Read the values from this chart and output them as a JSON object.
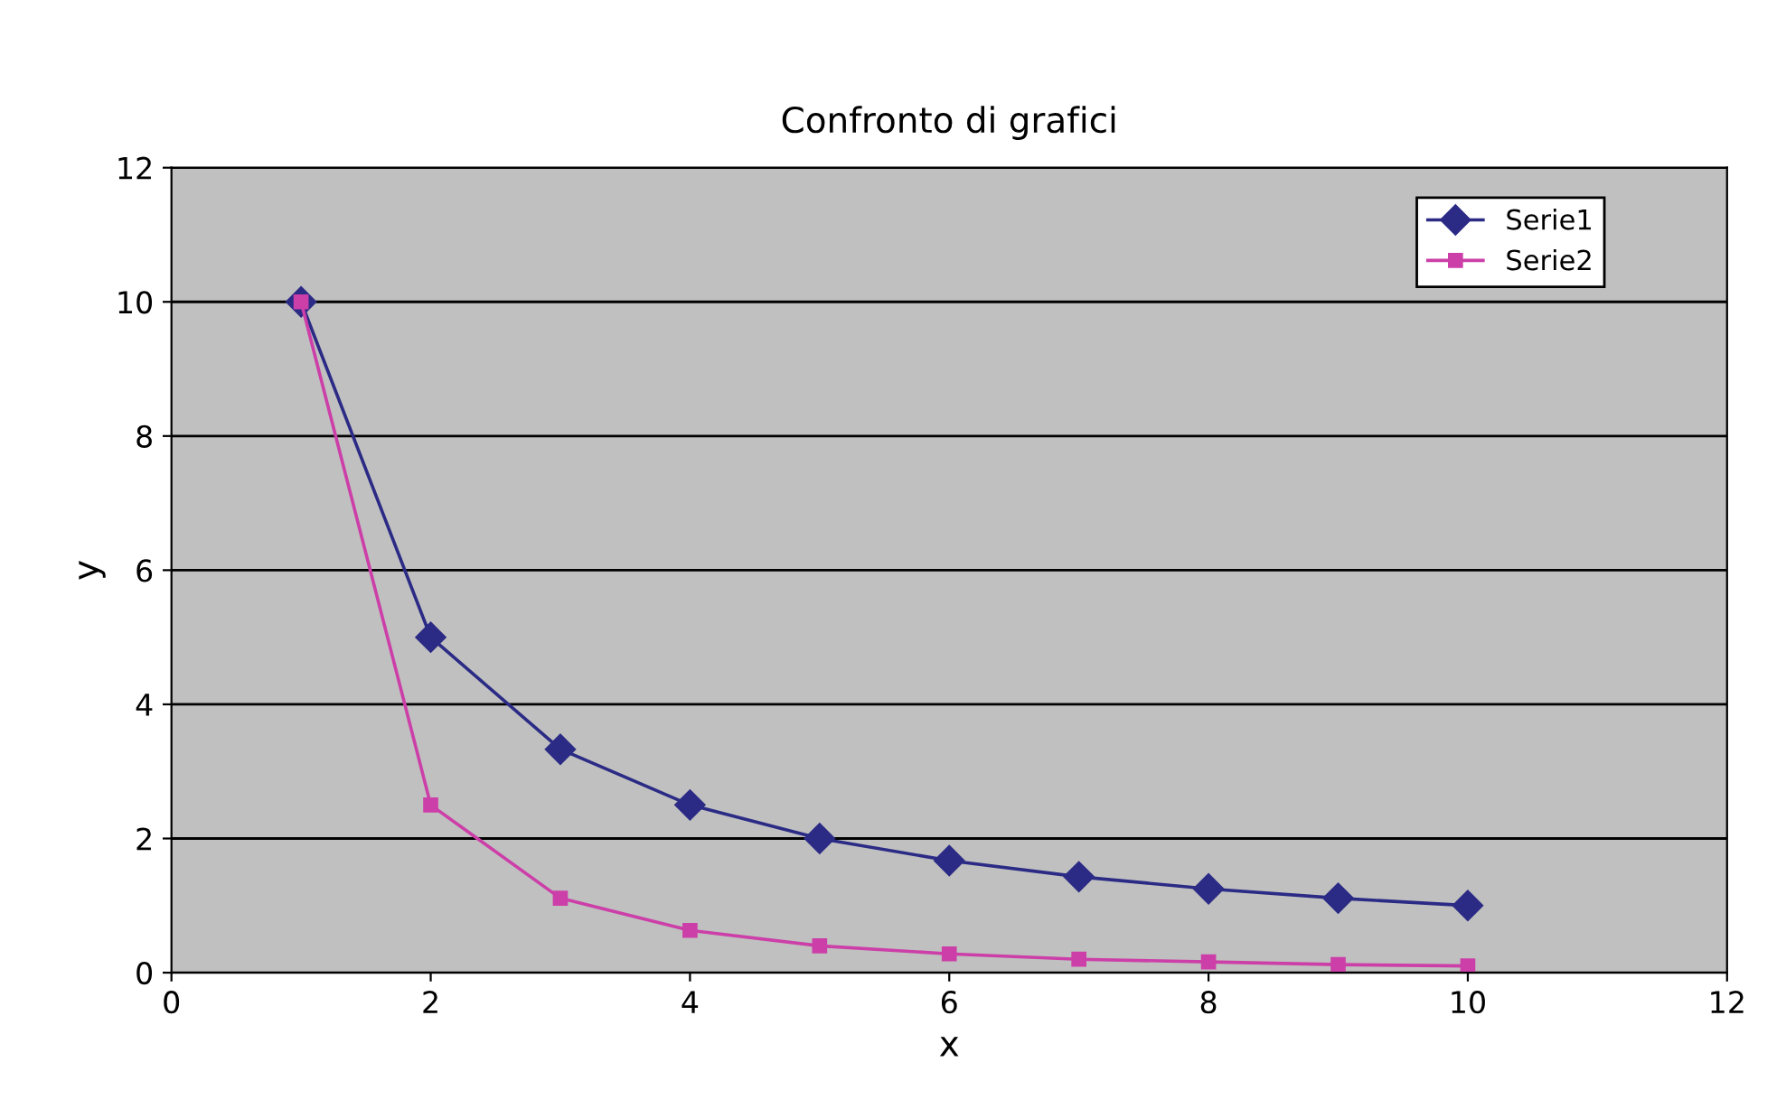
{
  "chart_data": {
    "type": "line",
    "title": "Confronto di grafici",
    "xlabel": "x",
    "ylabel": "y",
    "x": [
      1,
      2,
      3,
      4,
      5,
      6,
      7,
      8,
      9,
      10
    ],
    "series": [
      {
        "name": "Serie1",
        "color": "#2b2b86",
        "marker": "diamond",
        "values": [
          10,
          5,
          3.33,
          2.5,
          2,
          1.67,
          1.43,
          1.25,
          1.11,
          1.0
        ]
      },
      {
        "name": "Serie2",
        "color": "#cc3fa8",
        "marker": "square",
        "values": [
          10,
          2.5,
          1.11,
          0.63,
          0.4,
          0.28,
          0.2,
          0.16,
          0.12,
          0.1
        ]
      }
    ],
    "xlim": [
      0,
      12
    ],
    "xticks": [
      0,
      2,
      4,
      6,
      8,
      10,
      12
    ],
    "ylim": [
      0,
      12
    ],
    "yticks": [
      0,
      2,
      4,
      6,
      8,
      10,
      12
    ],
    "grid": "y",
    "legend": "top right",
    "line_style": "solid"
  }
}
